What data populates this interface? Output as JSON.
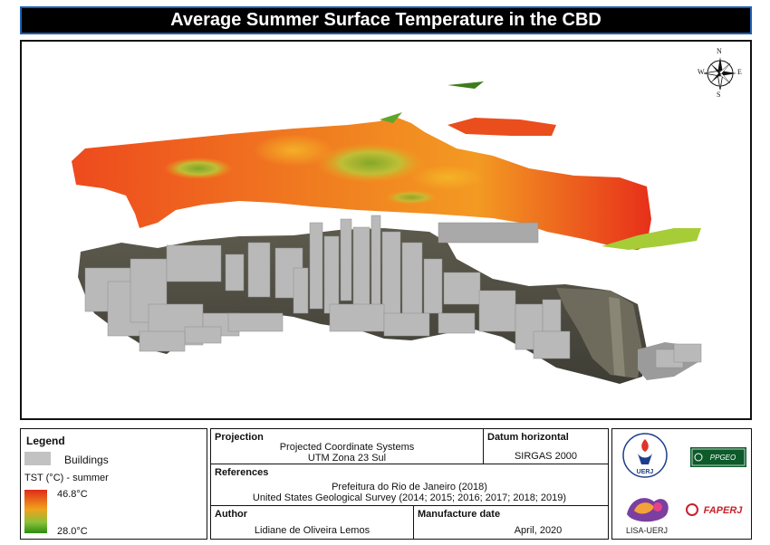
{
  "title": "Average Summer Surface Temperature in the CBD",
  "compass": {
    "n": "N",
    "s": "S",
    "e": "E",
    "w": "W"
  },
  "legend": {
    "heading": "Legend",
    "buildings_label": "Buildings",
    "tst_label": "TST (°C) - summer",
    "max_label": "46.8°C",
    "min_label": "28.0°C",
    "colors": {
      "hot": "#e02b1a",
      "mid": "#f1a21b",
      "cool": "#2c8c10",
      "building": "#c2c2c2"
    }
  },
  "projection": {
    "label": "Projection",
    "line1": "Projected Coordinate Systems",
    "line2": "UTM Zona 23 Sul"
  },
  "datum": {
    "label": "Datum horizontal",
    "value": "SIRGAS 2000"
  },
  "references": {
    "label": "References",
    "line1": "Prefeitura do Rio de Janeiro (2018)",
    "line2": "United States Geological Survey (2014; 2015; 2016; 2017; 2018; 2019)"
  },
  "author": {
    "label": "Author",
    "value": "Lidiane de Oliveira Lemos"
  },
  "manufacture": {
    "label": "Manufacture date",
    "value": "April, 2020"
  },
  "logos": {
    "uerj": "UERJ",
    "ppgeo": "PPGEO",
    "lisa": "LISA-UERJ",
    "faperj": "FAPERJ"
  }
}
